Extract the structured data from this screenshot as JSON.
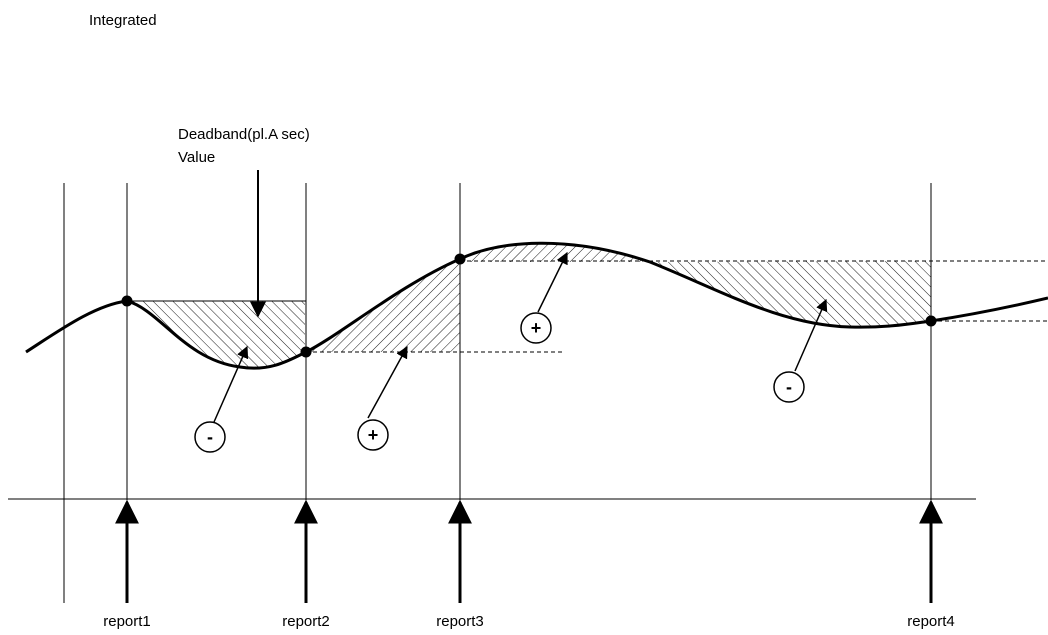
{
  "title": "Integrated",
  "deadband_label": "Deadband(pl.A sec)",
  "value_label": "Value",
  "reports": [
    "report1",
    "report2",
    "report3",
    "report4"
  ],
  "signs": [
    "-",
    "+",
    "+",
    "-"
  ],
  "colors": {
    "line": "#000000",
    "background": "#ffffff"
  }
}
